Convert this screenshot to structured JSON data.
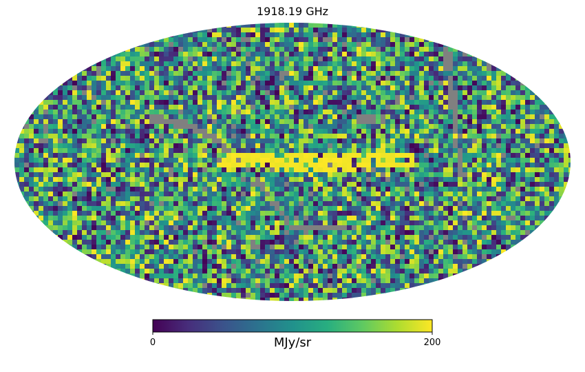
{
  "chart_data": {
    "type": "heatmap",
    "title": "1918.19 GHz",
    "projection": "mollweide",
    "colormap": "viridis",
    "masked_color": "#808080",
    "value_range": [
      0,
      200
    ],
    "colorbar": {
      "min_label": "0",
      "max_label": "200",
      "unit_label": "MJy/sr",
      "position": "bottom"
    },
    "grid": false
  }
}
